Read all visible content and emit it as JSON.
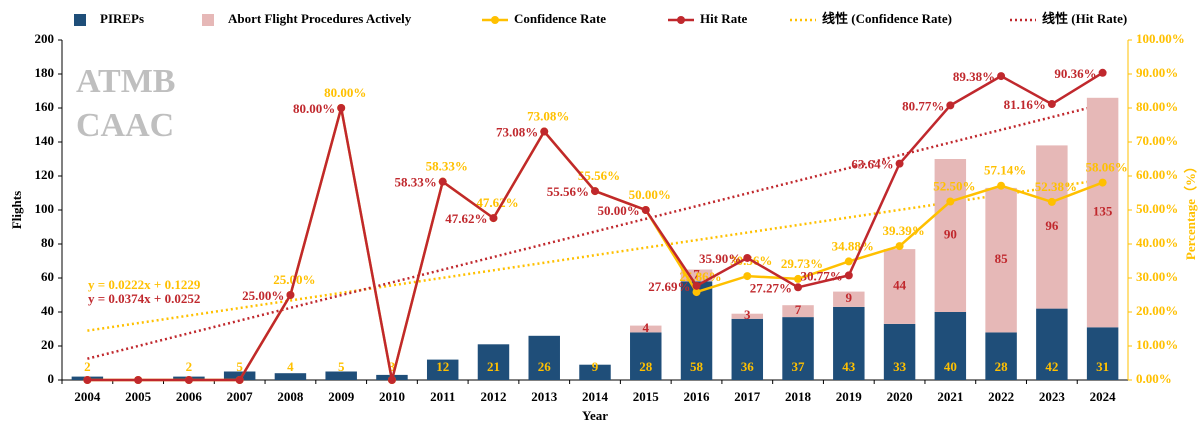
{
  "chart_data": {
    "type": "combo",
    "categories": [
      "2004",
      "2005",
      "2006",
      "2007",
      "2008",
      "2009",
      "2010",
      "2011",
      "2012",
      "2013",
      "2014",
      "2015",
      "2016",
      "2017",
      "2018",
      "2019",
      "2020",
      "2021",
      "2022",
      "2023",
      "2024"
    ],
    "x_label": "Year",
    "y_label": "Flights",
    "y2_label": "Percentage（%）",
    "annotations": [
      "ATMB",
      "CAAC"
    ],
    "ylim": [
      0,
      200
    ],
    "yticks": [
      0,
      20,
      40,
      60,
      80,
      100,
      120,
      140,
      160,
      180,
      200
    ],
    "y2lim": [
      0,
      100
    ],
    "y2ticks": [
      {
        "value": 0,
        "label": "0.00%"
      },
      {
        "value": 10,
        "label": "10.00%"
      },
      {
        "value": 20,
        "label": "20.00%"
      },
      {
        "value": 30,
        "label": "30.00%"
      },
      {
        "value": 40,
        "label": "40.00%"
      },
      {
        "value": 50,
        "label": "50.00%"
      },
      {
        "value": 60,
        "label": "60.00%"
      },
      {
        "value": 70,
        "label": "70.00%"
      },
      {
        "value": 80,
        "label": "80.00%"
      },
      {
        "value": 90,
        "label": "90.00%"
      },
      {
        "value": 100,
        "label": "100.00%"
      }
    ],
    "series": [
      {
        "name": "PIREPs",
        "type": "bar",
        "color": "#1f4e79",
        "label_color": "#ffc000",
        "values": [
          2,
          null,
          2,
          5,
          4,
          5,
          3,
          12,
          21,
          26,
          9,
          28,
          58,
          36,
          37,
          43,
          33,
          40,
          28,
          42,
          31
        ]
      },
      {
        "name": "Abort Flight Procedures Actively",
        "type": "bar",
        "color": "#e6b8b7",
        "label_color": "#c0282d",
        "values": [
          null,
          null,
          null,
          null,
          null,
          null,
          null,
          null,
          null,
          null,
          null,
          4,
          7,
          3,
          7,
          9,
          44,
          90,
          85,
          96,
          135
        ]
      },
      {
        "name": "Confidence Rate",
        "type": "line",
        "axis": "y2",
        "color": "#ffc000",
        "values": [
          0,
          0,
          0,
          0,
          25,
          80,
          0,
          58.33,
          47.62,
          73.08,
          55.56,
          50,
          25.86,
          30.56,
          29.73,
          34.88,
          39.39,
          52.5,
          57.14,
          52.38,
          58.06
        ],
        "value_labels": [
          null,
          null,
          null,
          null,
          "25.00%",
          "80.00%",
          null,
          "58.33%",
          "47.62%",
          "73.08%",
          "55.56%",
          "50.00%",
          "25.86%",
          "30.56%",
          "29.73%",
          "34.88%",
          "39.39%",
          "52.50%",
          "57.14%",
          "52.38%",
          "58.06%"
        ]
      },
      {
        "name": "Hit Rate",
        "type": "line",
        "axis": "y2",
        "color": "#c0282d",
        "values": [
          0,
          0,
          0,
          0,
          25,
          80,
          0,
          58.33,
          47.62,
          73.08,
          55.56,
          50,
          27.69,
          35.9,
          27.27,
          30.77,
          63.64,
          80.77,
          89.38,
          81.16,
          90.36
        ],
        "value_labels": [
          null,
          null,
          null,
          null,
          "25.00%",
          "80.00%",
          null,
          "58.33%",
          "47.62%",
          "73.08%",
          "55.56%",
          "50.00%",
          "27.69%",
          "35.90%",
          "27.27%",
          "30.77%",
          "63.64%",
          "80.77%",
          "89.38%",
          "81.16%",
          "90.36%"
        ]
      }
    ],
    "trendlines": [
      {
        "name": "线性 (Confidence Rate)",
        "color": "#ffc000",
        "slope": 0.0222,
        "intercept": 0.1229,
        "label": "y = 0.0222x + 0.1229"
      },
      {
        "name": "线性 (Hit Rate)",
        "color": "#c0282d",
        "slope": 0.0374,
        "intercept": 0.0252,
        "label": "y = 0.0374x + 0.0252"
      }
    ]
  }
}
